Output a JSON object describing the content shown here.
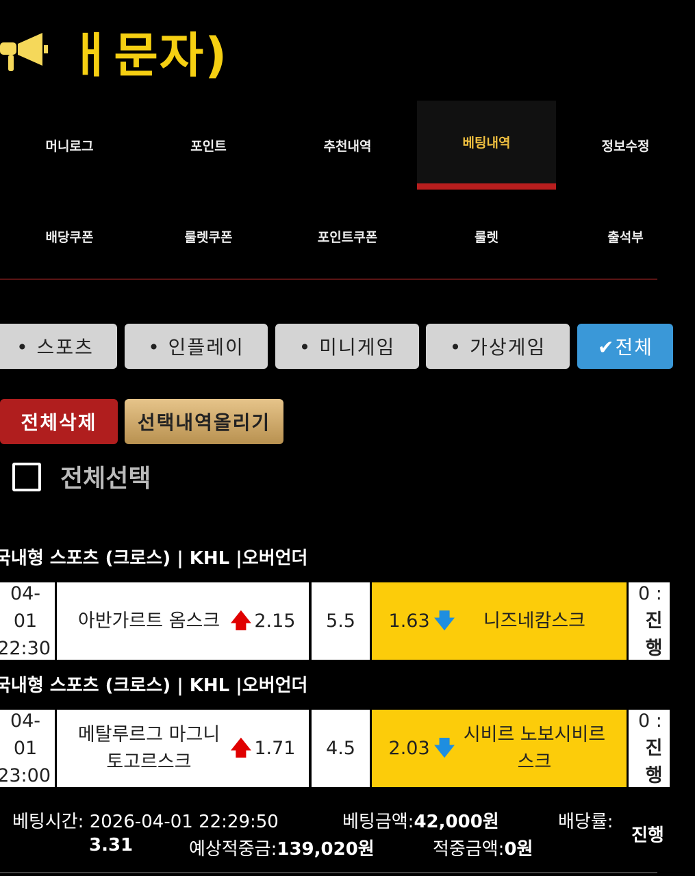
{
  "header": {
    "title": "ㅐ문자)",
    "icon": "megaphone-icon"
  },
  "nav": [
    {
      "label": "머니로그"
    },
    {
      "label": "포인트"
    },
    {
      "label": "추천내역"
    },
    {
      "label": "베팅내역",
      "active": true
    },
    {
      "label": "정보수정"
    },
    {
      "label": "배당쿠폰"
    },
    {
      "label": "룰렛쿠폰"
    },
    {
      "label": "포인트쿠폰"
    },
    {
      "label": "룰렛"
    },
    {
      "label": "출석부"
    }
  ],
  "filters": [
    {
      "label": "• 스포츠"
    },
    {
      "label": "• 인플레이"
    },
    {
      "label": "• 미니게임"
    },
    {
      "label": "• 가상게임"
    },
    {
      "label": "✔전체",
      "active": true
    }
  ],
  "actions": {
    "delete_all": "전체삭제",
    "upload_selected": "선택내역올리기",
    "select_all": "전체선택"
  },
  "bets": [
    {
      "header": "국내형 스포츠 (크로스) | KHL  |오버언더",
      "date": "04-01",
      "time": "22:30",
      "home": "아반가르트 옴스크",
      "home_odds": "2.15",
      "line": "5.5",
      "away_odds": "1.63",
      "away": "니즈네캄스크",
      "score": "0 :",
      "status": "진행"
    },
    {
      "header": "국내형 스포츠 (크로스) | KHL  |오버언더",
      "date": "04-01",
      "time": "23:00",
      "home": "메탈루르그 마그니토고르스크",
      "home_odds": "1.71",
      "line": "4.5",
      "away_odds": "2.03",
      "away": "시비르 노보시비르스크",
      "score": "0 :",
      "status": "진행"
    }
  ],
  "summary": {
    "bet_time": "베팅시간: 2026-04-01 22:29:50",
    "bet_amount_label": "베팅금액:",
    "bet_amount": "42,000원",
    "odds_label": "배당률:",
    "odds": "3.31",
    "expected_label": "예상적중금:",
    "expected": "139,020원",
    "win_label": "적중금액:",
    "win": "0원",
    "status": "진행"
  },
  "colors": {
    "accent": "#f5cf12",
    "active_nav_bar": "#b81e1e",
    "selected_filter": "#3a98d8",
    "selected_pick": "#fccc0a"
  }
}
